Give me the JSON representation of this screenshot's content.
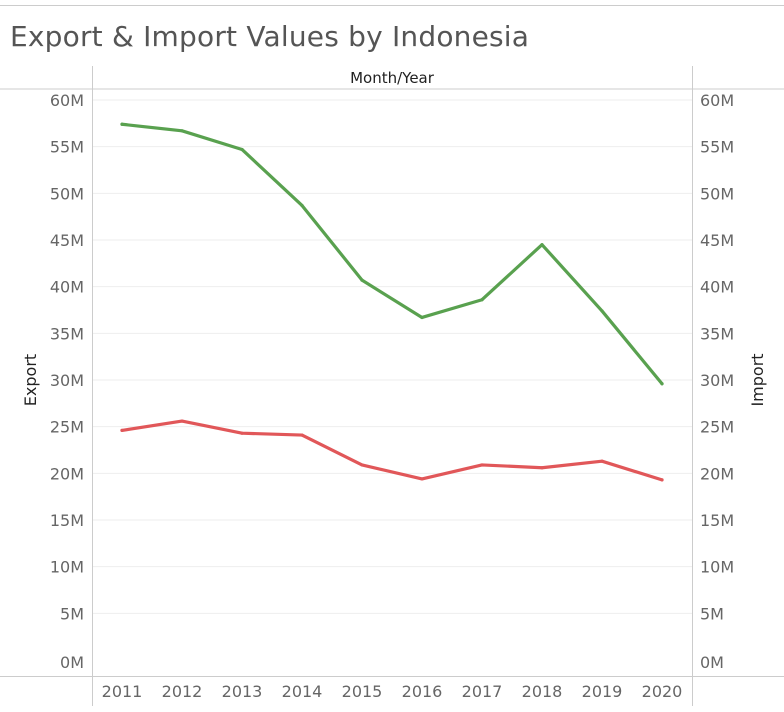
{
  "chart_data": {
    "type": "line",
    "title": "Export & Import Values by Indonesia",
    "header": "Month/Year",
    "xlabel": "",
    "ylabel_left": "Export",
    "ylabel_right": "Import",
    "categories": [
      "2011",
      "2012",
      "2013",
      "2014",
      "2015",
      "2016",
      "2017",
      "2018",
      "2019",
      "2020"
    ],
    "ylim": [
      0,
      60000000
    ],
    "yticks": [
      {
        "value": 0,
        "label": "0M"
      },
      {
        "value": 5000000,
        "label": "5M"
      },
      {
        "value": 10000000,
        "label": "10M"
      },
      {
        "value": 15000000,
        "label": "15M"
      },
      {
        "value": 20000000,
        "label": "20M"
      },
      {
        "value": 25000000,
        "label": "25M"
      },
      {
        "value": 30000000,
        "label": "30M"
      },
      {
        "value": 35000000,
        "label": "35M"
      },
      {
        "value": 40000000,
        "label": "40M"
      },
      {
        "value": 45000000,
        "label": "45M"
      },
      {
        "value": 50000000,
        "label": "50M"
      },
      {
        "value": 55000000,
        "label": "55M"
      },
      {
        "value": 60000000,
        "label": "60M"
      }
    ],
    "grid": true,
    "legend": "none",
    "series": [
      {
        "key": "export",
        "color": "#59a14f",
        "values": [
          57400000,
          56700000,
          54700000,
          48700000,
          40700000,
          36700000,
          38600000,
          44500000,
          37400000,
          29600000
        ]
      },
      {
        "key": "import",
        "color": "#e15759",
        "values": [
          24600000,
          25600000,
          24300000,
          24100000,
          20900000,
          19400000,
          20900000,
          20600000,
          21300000,
          19300000
        ]
      }
    ]
  }
}
